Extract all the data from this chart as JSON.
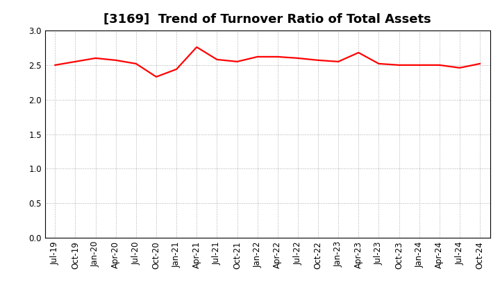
{
  "title": "[3169]  Trend of Turnover Ratio of Total Assets",
  "line_color": "#ff0000",
  "background_color": "#ffffff",
  "grid_color": "#aaaaaa",
  "ylim": [
    0.0,
    3.0
  ],
  "yticks": [
    0.0,
    0.5,
    1.0,
    1.5,
    2.0,
    2.5,
    3.0
  ],
  "values": [
    2.5,
    2.55,
    2.6,
    2.57,
    2.52,
    2.33,
    2.44,
    2.76,
    2.58,
    2.55,
    2.62,
    2.62,
    2.6,
    2.57,
    2.55,
    2.68,
    2.52,
    2.5,
    2.5,
    2.5,
    2.46,
    2.52
  ],
  "xtick_labels": [
    "Jul-19",
    "Oct-19",
    "Jan-20",
    "Apr-20",
    "Jul-20",
    "Oct-20",
    "Jan-21",
    "Apr-21",
    "Jul-21",
    "Oct-21",
    "Jan-22",
    "Apr-22",
    "Jul-22",
    "Oct-22",
    "Jan-23",
    "Apr-23",
    "Jul-23",
    "Oct-23",
    "Jan-24",
    "Apr-24",
    "Jul-24",
    "Oct-24"
  ],
  "title_fontsize": 13,
  "tick_fontsize": 8.5,
  "line_width": 1.6
}
